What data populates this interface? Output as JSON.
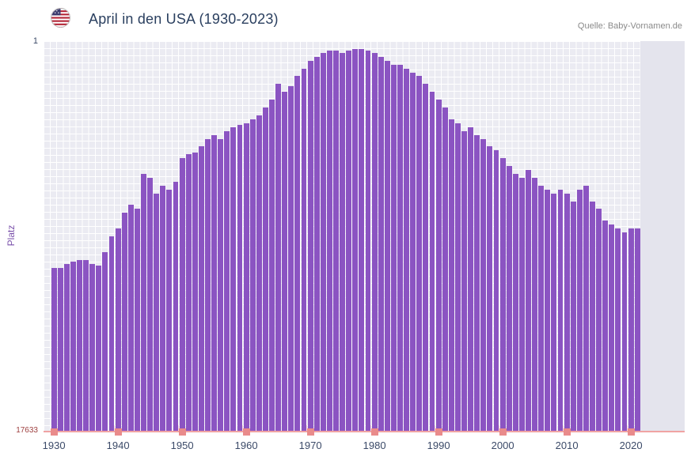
{
  "header": {
    "title": "April in den USA (1930-2023)",
    "source": "Quelle: Baby-Vornamen.de"
  },
  "chart_data": {
    "type": "bar",
    "title": "April in den USA (1930-2023)",
    "ylabel": "Platz",
    "y_axis": {
      "top_label": "1",
      "bottom_label": "17633",
      "inverted": true,
      "range": [
        1,
        17633
      ]
    },
    "x_ticks": [
      "1930",
      "1940",
      "1950",
      "1960",
      "1970",
      "1980",
      "1990",
      "2000",
      "2010",
      "2020"
    ],
    "x_range": [
      1930,
      2023
    ],
    "grid": true,
    "legend_position": "none",
    "bar_color": "#8b54c2",
    "years": [
      1930,
      1931,
      1932,
      1933,
      1934,
      1935,
      1936,
      1937,
      1938,
      1939,
      1940,
      1941,
      1942,
      1943,
      1944,
      1945,
      1946,
      1947,
      1948,
      1949,
      1950,
      1951,
      1952,
      1953,
      1954,
      1955,
      1956,
      1957,
      1958,
      1959,
      1960,
      1961,
      1962,
      1963,
      1964,
      1965,
      1966,
      1967,
      1968,
      1969,
      1970,
      1971,
      1972,
      1973,
      1974,
      1975,
      1976,
      1977,
      1978,
      1979,
      1980,
      1981,
      1982,
      1983,
      1984,
      1985,
      1986,
      1987,
      1988,
      1989,
      1990,
      1991,
      1992,
      1993,
      1994,
      1995,
      1996,
      1997,
      1998,
      1999,
      2000,
      2001,
      2002,
      2003,
      2004,
      2005,
      2006,
      2007,
      2008,
      2009,
      2010,
      2011,
      2012,
      2013,
      2014,
      2015,
      2016,
      2017,
      2018,
      2019,
      2020,
      2021
    ],
    "bar_heights_pct": [
      42,
      42,
      43,
      43.5,
      44,
      44,
      43,
      42.5,
      46,
      50,
      52,
      56,
      58,
      57,
      66,
      65,
      61,
      63,
      62,
      64,
      70,
      71,
      71.5,
      73,
      75,
      76,
      75,
      77,
      78,
      78.5,
      79,
      80,
      81,
      83,
      85,
      89,
      87,
      88.5,
      91,
      93,
      95,
      96,
      97,
      97.5,
      97.5,
      97,
      97.5,
      98,
      98,
      97.5,
      97,
      96,
      95,
      94,
      94,
      93,
      92,
      91,
      89,
      87,
      85,
      83,
      80,
      79,
      77,
      78,
      76,
      75,
      73,
      72,
      70,
      68,
      66,
      65,
      67,
      65,
      63,
      62,
      61,
      62,
      61,
      59,
      62,
      63,
      59,
      57,
      54,
      53,
      52,
      51,
      52,
      52
    ]
  },
  "colors": {
    "bar": "#8b54c2",
    "plot_bg": "#ebebf2",
    "grid": "#ffffff",
    "axis_line": "#f0a3a3",
    "decade_marker": "#e98b8b",
    "year_marker": "#f4b4c4",
    "title": "#2a3f5f",
    "tick_label": "#3b4a68",
    "y_min_label": "#9e4040",
    "y_title": "#7b52ab",
    "source": "#8a8a8a"
  }
}
